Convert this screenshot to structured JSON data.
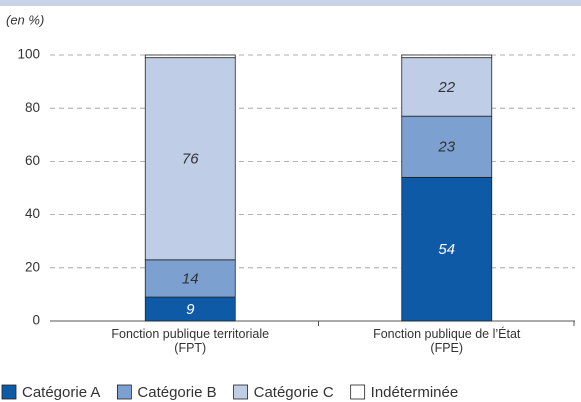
{
  "chart_data": {
    "type": "stacked_bar",
    "unit_label": "(en %)",
    "categories": [
      "Fonction publique territoriale\n(FPT)",
      "Fonction publique de l’État\n(FPE)"
    ],
    "series": [
      {
        "name": "Catégorie A",
        "color": "#0e5aa7",
        "values": [
          9,
          54
        ]
      },
      {
        "name": "Catégorie B",
        "color": "#7ca0d0",
        "values": [
          14,
          23
        ]
      },
      {
        "name": "Catégorie C",
        "color": "#bfcde7",
        "values": [
          76,
          22
        ]
      },
      {
        "name": "Indéterminée",
        "color": "#ffffff",
        "values": [
          1,
          1
        ]
      }
    ],
    "ylim": [
      0,
      100
    ],
    "yticks": [
      0,
      20,
      40,
      60,
      80,
      100
    ],
    "grid": true,
    "legend": "bottom"
  }
}
